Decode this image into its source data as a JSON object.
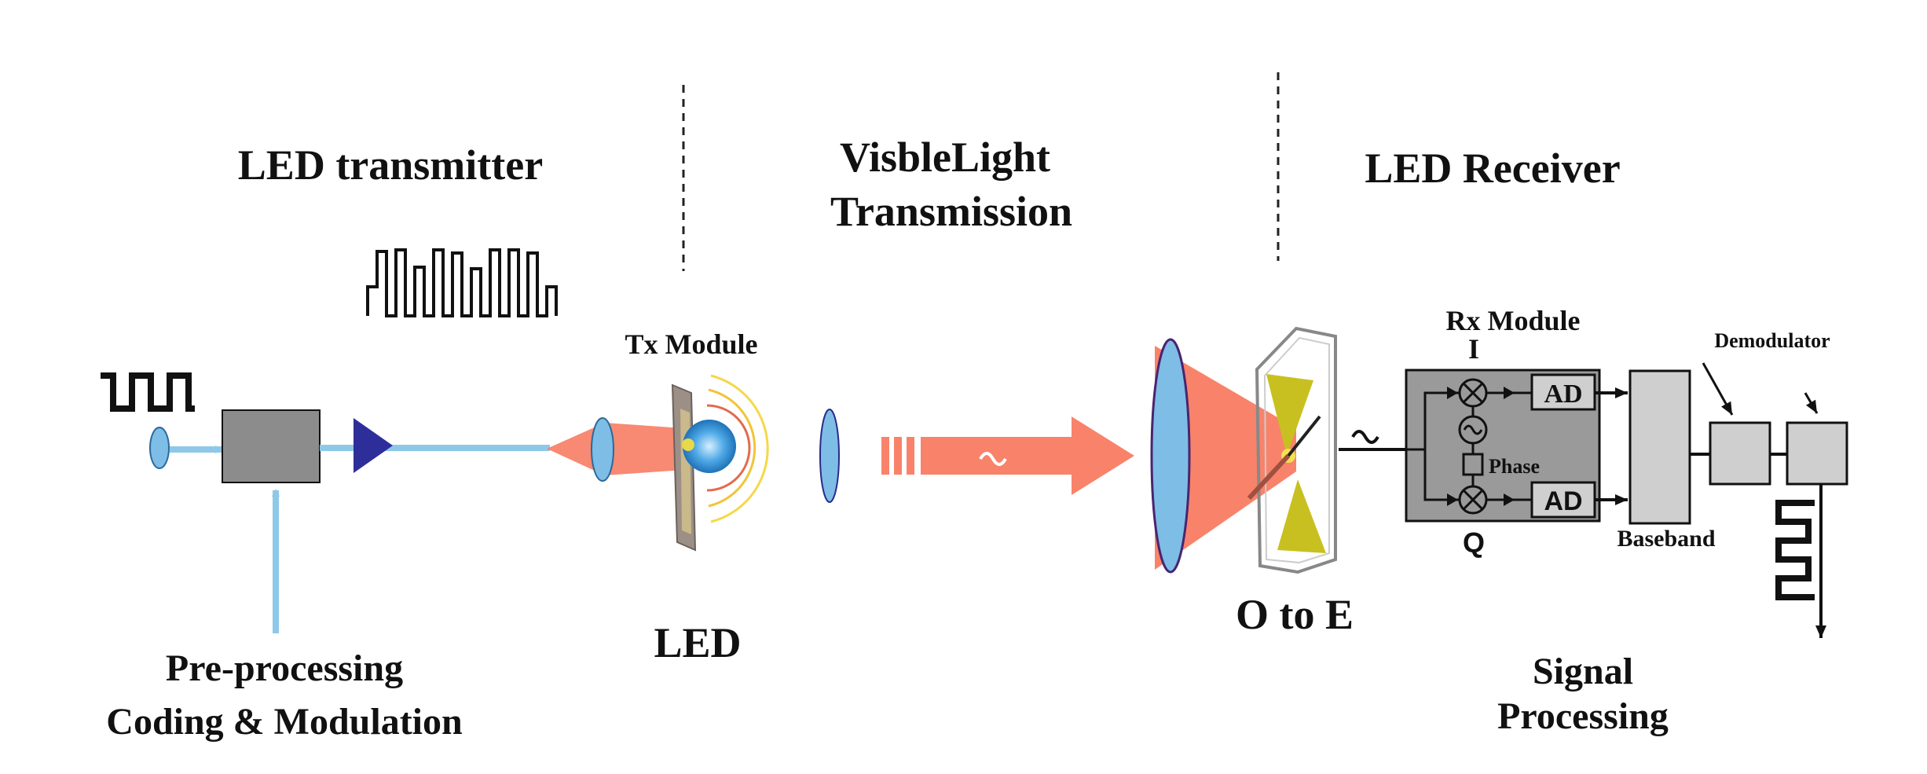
{
  "sections": {
    "transmitter": "LED transmitter",
    "transmission_line1": "VisbleLight",
    "transmission_line2": "Transmission",
    "receiver": "LED Receiver"
  },
  "labels": {
    "preprocessing_line1": "Pre-processing",
    "preprocessing_line2": "Coding & Modulation",
    "tx_module": "Tx Module",
    "led": "LED",
    "o_to_e": "O to E",
    "rx_module": "Rx Module",
    "i_branch": "I",
    "q_branch": "Q",
    "phase": "Phase",
    "ad_top": "AD",
    "ad_bottom": "AD",
    "baseband": "Baseband",
    "demodulator": "Demodulator",
    "signal_processing_line1": "Signal",
    "signal_processing_line2": "Processing"
  },
  "colors": {
    "light_beam": "#f8836a",
    "signal_line": "#8ec8e8",
    "lens": "#7dbde6",
    "amplifier": "#2e2e9a",
    "processor_box": "#8c8c8c",
    "rx_module_box": "#9a9a9a",
    "light_box": "#cfcfcf",
    "led_glow": "#2b8fd6",
    "detector_yellow": "#c8c020"
  },
  "icons": {
    "input_signal": "square-wave-icon",
    "coded_signal": "pulse-train-icon",
    "wave": "sine-wave-icon",
    "mixer": "mixer-icon",
    "oscillator": "oscillator-icon",
    "output_signal": "square-wave-icon"
  }
}
